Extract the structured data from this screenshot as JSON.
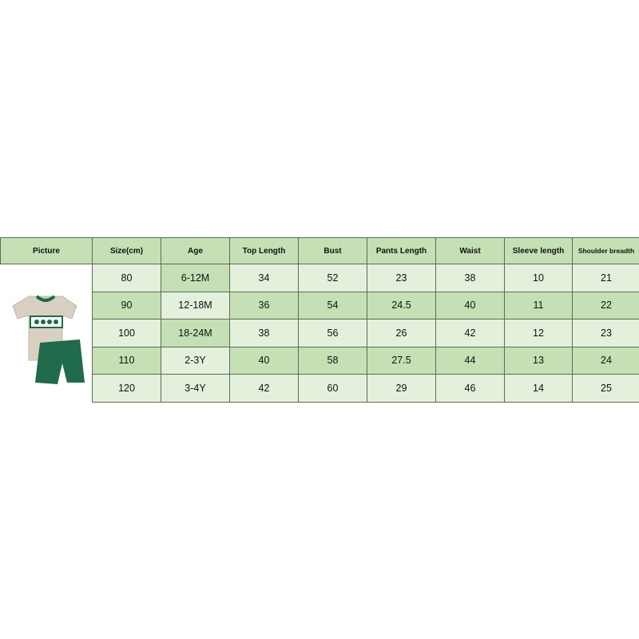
{
  "headers": [
    "Picture",
    "Size(cm)",
    "Age",
    "Top Length",
    "Bust",
    "Pants Length",
    "Waist",
    "Sleeve length",
    "Shoulder breadth"
  ],
  "rows": [
    [
      "80",
      "6-12M",
      "34",
      "52",
      "23",
      "38",
      "10",
      "21"
    ],
    [
      "90",
      "12-18M",
      "36",
      "54",
      "24.5",
      "40",
      "11",
      "22"
    ],
    [
      "100",
      "18-24M",
      "38",
      "56",
      "26",
      "42",
      "12",
      "23"
    ],
    [
      "110",
      "2-3Y",
      "40",
      "58",
      "27.5",
      "44",
      "13",
      "24"
    ],
    [
      "120",
      "3-4Y",
      "42",
      "60",
      "29",
      "46",
      "14",
      "25"
    ]
  ],
  "colors": {
    "light": "#e3f0dc",
    "dark": "#c5e0b4",
    "shirt": "#d8d0c2",
    "shorts": "#1f6b4b"
  }
}
